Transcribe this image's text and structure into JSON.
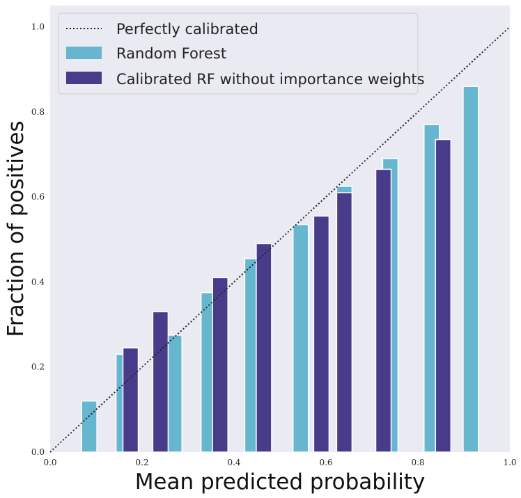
{
  "chart_data": {
    "type": "bar",
    "title": "",
    "xlabel": "Mean predicted probability",
    "ylabel": "Fraction of positives",
    "xlim": [
      0.0,
      1.0
    ],
    "ylim": [
      0.0,
      1.05
    ],
    "xticks": [
      "0.0",
      "0.2",
      "0.4",
      "0.6",
      "0.8",
      "1.0"
    ],
    "yticks": [
      "0.0",
      "0.2",
      "0.4",
      "0.6",
      "0.8",
      "1.0"
    ],
    "grid": false,
    "legend_position": "top-left",
    "reference_line": {
      "name": "Perfectly calibrated",
      "x": [
        0,
        1
      ],
      "y": [
        0,
        1
      ],
      "style": "dotted"
    },
    "series": [
      {
        "name": "Random Forest",
        "color": "#67b6d0",
        "x": [
          0.085,
          0.16,
          0.27,
          0.345,
          0.44,
          0.545,
          0.64,
          0.74,
          0.83,
          0.915
        ],
        "values": [
          0.12,
          0.23,
          0.275,
          0.375,
          0.455,
          0.535,
          0.625,
          0.69,
          0.77,
          0.86
        ]
      },
      {
        "name": "Calibrated RF without importance weights",
        "color": "#473b8a",
        "x": [
          0.175,
          0.24,
          0.37,
          0.465,
          0.59,
          0.64,
          0.725,
          0.855
        ],
        "values": [
          0.245,
          0.33,
          0.41,
          0.49,
          0.555,
          0.61,
          0.665,
          0.735
        ]
      }
    ]
  }
}
